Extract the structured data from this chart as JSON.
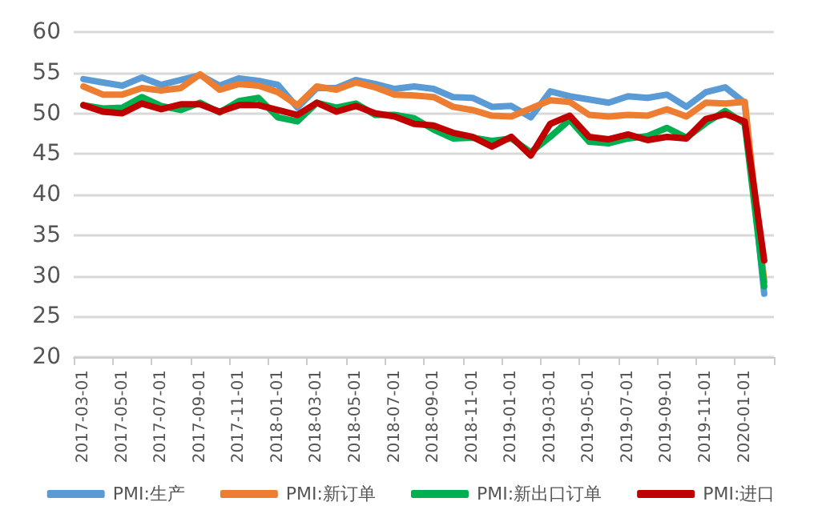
{
  "chart_data": {
    "type": "line",
    "categories": [
      "2017-03-01",
      null,
      "2017-05-01",
      null,
      "2017-07-01",
      null,
      "2017-09-01",
      null,
      "2017-11-01",
      null,
      "2018-01-01",
      null,
      "2018-03-01",
      null,
      "2018-05-01",
      null,
      "2018-07-01",
      null,
      "2018-09-01",
      null,
      "2018-11-01",
      null,
      "2019-01-01",
      null,
      "2019-03-01",
      null,
      "2019-05-01",
      null,
      "2019-07-01",
      null,
      "2019-09-01",
      null,
      "2019-11-01",
      null,
      "2020-01-01",
      null
    ],
    "series": [
      {
        "name": "PMI:生产",
        "color": "#5b9bd5",
        "values": [
          54.2,
          53.8,
          53.4,
          54.4,
          53.5,
          54.1,
          54.7,
          53.4,
          54.3,
          54.0,
          53.5,
          50.7,
          53.1,
          53.1,
          54.1,
          53.6,
          53.0,
          53.3,
          53.0,
          52.0,
          51.9,
          50.8,
          50.9,
          49.5,
          52.7,
          52.1,
          51.7,
          51.3,
          52.1,
          51.9,
          52.3,
          50.8,
          52.6,
          53.2,
          51.3,
          27.8
        ]
      },
      {
        "name": "PMI:新订单",
        "color": "#ed7d31",
        "values": [
          53.3,
          52.3,
          52.3,
          53.1,
          52.8,
          53.1,
          54.8,
          52.9,
          53.6,
          53.4,
          52.6,
          51.0,
          53.3,
          52.9,
          53.8,
          53.2,
          52.3,
          52.2,
          52.0,
          50.8,
          50.4,
          49.7,
          49.6,
          50.6,
          51.6,
          51.4,
          49.8,
          49.6,
          49.8,
          49.7,
          50.5,
          49.6,
          51.3,
          51.2,
          51.4,
          29.3
        ]
      },
      {
        "name": "PMI:新出口订单",
        "color": "#00b050",
        "values": [
          51.0,
          50.6,
          50.7,
          52.0,
          50.9,
          50.4,
          51.3,
          50.1,
          51.5,
          51.9,
          49.5,
          49.0,
          51.3,
          50.7,
          51.2,
          49.8,
          49.8,
          49.4,
          48.0,
          46.9,
          47.0,
          46.6,
          46.9,
          45.2,
          47.1,
          49.2,
          46.5,
          46.3,
          46.9,
          47.2,
          48.2,
          47.0,
          48.8,
          50.3,
          48.7,
          28.7
        ]
      },
      {
        "name": "PMI:进口",
        "color": "#c00000",
        "values": [
          51.0,
          50.2,
          50.0,
          51.2,
          50.5,
          51.1,
          51.1,
          50.2,
          51.0,
          51.0,
          50.4,
          49.8,
          51.3,
          50.2,
          50.9,
          50.0,
          49.6,
          48.7,
          48.5,
          47.6,
          47.1,
          45.9,
          47.1,
          44.8,
          48.7,
          49.7,
          47.1,
          46.8,
          47.4,
          46.7,
          47.1,
          46.9,
          49.3,
          49.9,
          49.0,
          31.9
        ]
      }
    ],
    "ylim": [
      20,
      60
    ],
    "yticks": [
      20,
      25,
      30,
      35,
      40,
      45,
      50,
      55,
      60
    ],
    "grid": "y",
    "legend": "bottom",
    "marker": "none",
    "line_style": "solid"
  }
}
